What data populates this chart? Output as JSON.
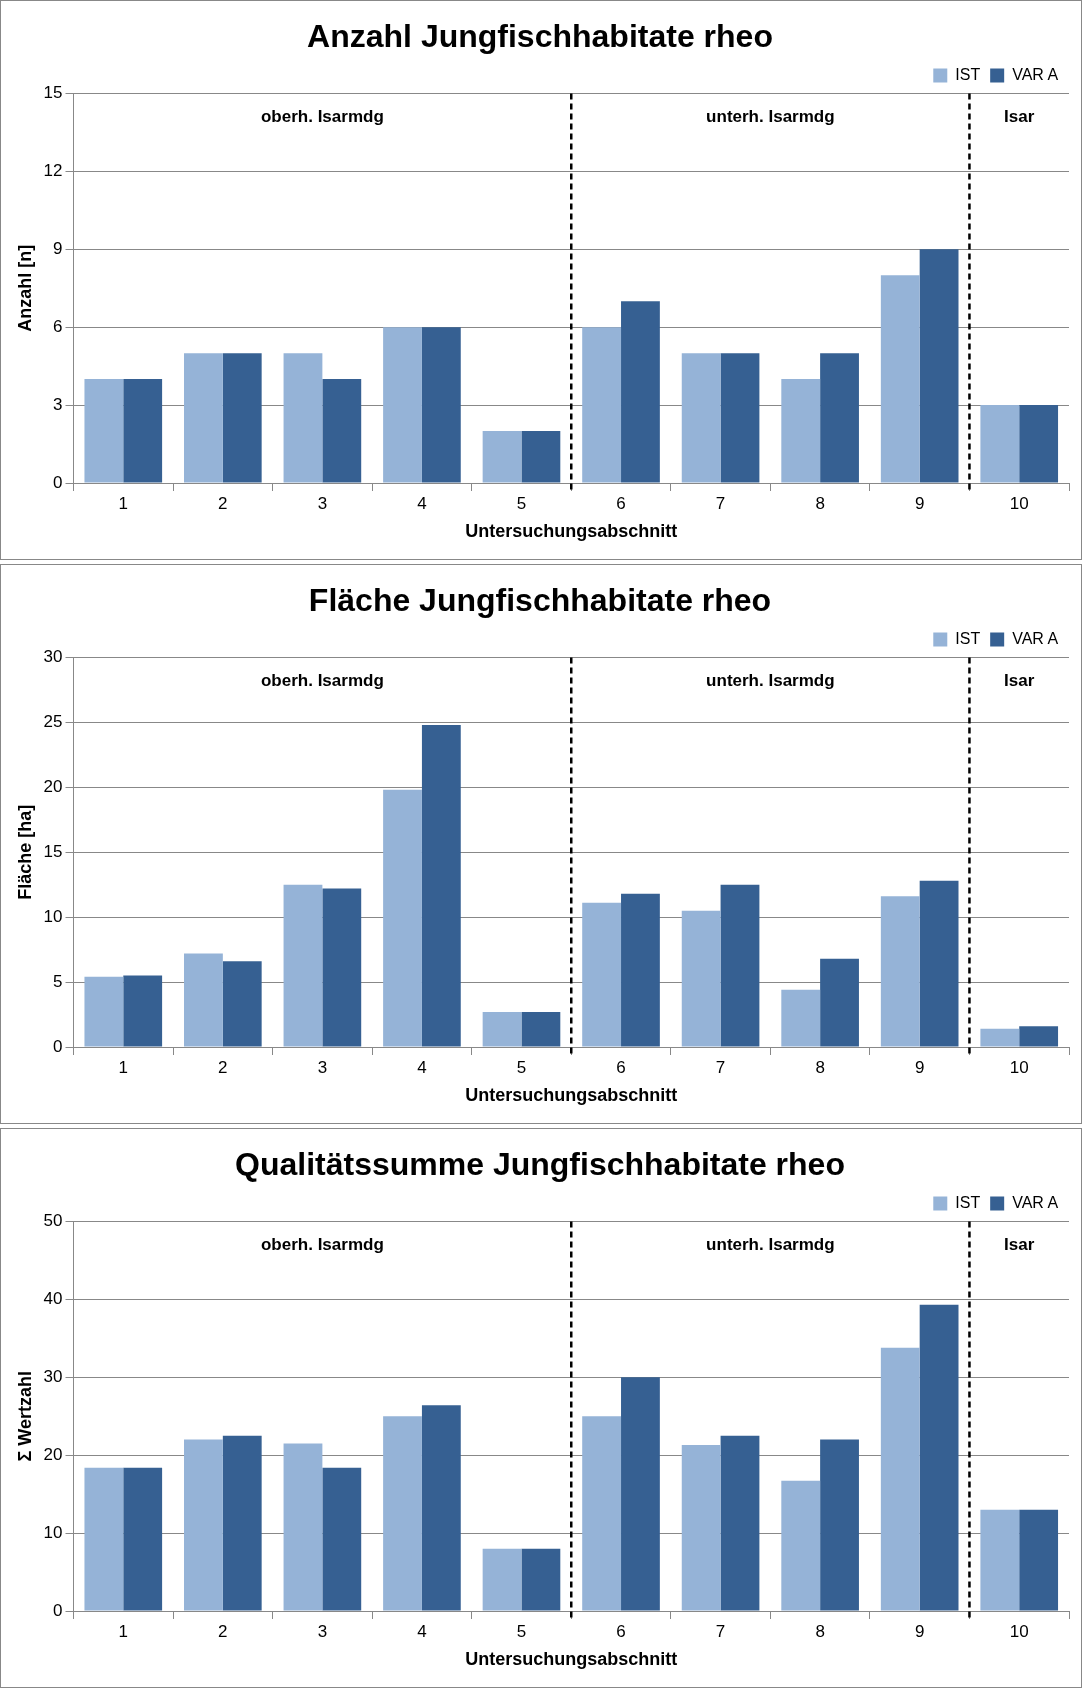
{
  "chart_data": [
    {
      "type": "bar",
      "title": "Anzahl Jungfischhabitate rheo",
      "xlabel": "Untersuchungsabschnitt",
      "ylabel": "Anzahl [n]",
      "categories": [
        "1",
        "2",
        "3",
        "4",
        "5",
        "6",
        "7",
        "8",
        "9",
        "10"
      ],
      "series": [
        {
          "name": "IST",
          "color": "#95b3d7",
          "values": [
            4,
            5,
            5,
            6,
            2,
            6,
            5,
            4,
            8,
            3
          ]
        },
        {
          "name": "VAR A",
          "color": "#366092",
          "values": [
            4,
            5,
            4,
            6,
            2,
            7,
            5,
            5,
            9,
            3
          ]
        }
      ],
      "ylim": [
        0,
        15
      ],
      "yticks": [
        0,
        3,
        6,
        9,
        12,
        15
      ],
      "grid": "y",
      "legend": "top right",
      "annotations": [
        "oberh. Isarmdg",
        "unterh. Isarmdg",
        "Isar"
      ]
    },
    {
      "type": "bar",
      "title": "Fläche Jungfischhabitate rheo",
      "xlabel": "Untersuchungsabschnitt",
      "ylabel": "Fläche [ha]",
      "categories": [
        "1",
        "2",
        "3",
        "4",
        "5",
        "6",
        "7",
        "8",
        "9",
        "10"
      ],
      "series": [
        {
          "name": "IST",
          "color": "#95b3d7",
          "values": [
            5.4,
            7.2,
            12.5,
            19.8,
            2.7,
            11.1,
            10.5,
            4.4,
            11.6,
            1.4
          ]
        },
        {
          "name": "VAR A",
          "color": "#366092",
          "values": [
            5.5,
            6.6,
            12.2,
            24.8,
            2.7,
            11.8,
            12.5,
            6.8,
            12.8,
            1.6
          ]
        }
      ],
      "ylim": [
        0,
        30
      ],
      "yticks": [
        0,
        5,
        10,
        15,
        20,
        25,
        30
      ],
      "grid": "y",
      "legend": "top right",
      "annotations": [
        "oberh. Isarmdg",
        "unterh. Isarmdg",
        "Isar"
      ]
    },
    {
      "type": "bar",
      "title": "Qualitätssumme Jungfischhabitate rheo",
      "xlabel": "Untersuchungsabschnitt",
      "ylabel": "Σ Wertzahl",
      "categories": [
        "1",
        "2",
        "3",
        "4",
        "5",
        "6",
        "7",
        "8",
        "9",
        "10"
      ],
      "series": [
        {
          "name": "IST",
          "color": "#95b3d7",
          "values": [
            18.4,
            22,
            21.5,
            25,
            8,
            25,
            21.3,
            16.7,
            33.8,
            13
          ]
        },
        {
          "name": "VAR A",
          "color": "#366092",
          "values": [
            18.4,
            22.5,
            18.4,
            26.4,
            8,
            30,
            22.5,
            22,
            39.3,
            13
          ]
        }
      ],
      "ylim": [
        0,
        50
      ],
      "yticks": [
        0,
        10,
        20,
        30,
        40,
        50
      ],
      "grid": "y",
      "legend": "top right",
      "annotations": [
        "oberh. Isarmdg",
        "unterh. Isarmdg",
        "Isar"
      ]
    }
  ]
}
